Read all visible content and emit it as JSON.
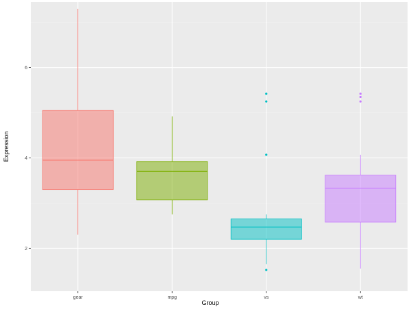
{
  "chart_data": {
    "type": "boxplot",
    "xlabel": "Group",
    "ylabel": "Expression",
    "ylim": [
      1.05,
      7.45
    ],
    "y_ticks": [
      2,
      4,
      6
    ],
    "y_tick_labels": [
      "2",
      "4",
      "6"
    ],
    "grid": true,
    "legend": "none",
    "categories": [
      "gear",
      "mpg",
      "vs",
      "wt"
    ],
    "colors": [
      "#F8766D",
      "#7CAE00",
      "#00BFC4",
      "#C77CFF"
    ],
    "boxes": [
      {
        "category": "gear",
        "whisker_low": 2.3,
        "q1": 3.3,
        "median": 3.95,
        "q3": 5.05,
        "whisker_high": 7.3,
        "outliers": []
      },
      {
        "category": "mpg",
        "whisker_low": 2.75,
        "q1": 3.07,
        "median": 3.7,
        "q3": 3.92,
        "whisker_high": 4.92,
        "outliers": []
      },
      {
        "category": "vs",
        "whisker_low": 1.65,
        "q1": 2.2,
        "median": 2.47,
        "q3": 2.65,
        "whisker_high": 2.75,
        "outliers": [
          5.42,
          5.25,
          4.07,
          1.52
        ]
      },
      {
        "category": "wt",
        "whisker_low": 1.55,
        "q1": 2.58,
        "median": 3.33,
        "q3": 3.62,
        "whisker_high": 4.07,
        "outliers": [
          5.42,
          5.35,
          5.25
        ]
      }
    ]
  }
}
